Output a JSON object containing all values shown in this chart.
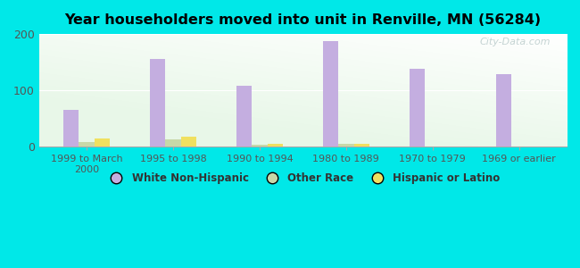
{
  "title": "Year householders moved into unit in Renville, MN (56284)",
  "categories": [
    "1999 to March\n2000",
    "1995 to 1998",
    "1990 to 1994",
    "1980 to 1989",
    "1970 to 1979",
    "1969 or earlier"
  ],
  "white_non_hispanic": [
    65,
    155,
    108,
    188,
    138,
    128
  ],
  "other_race": [
    8,
    12,
    3,
    4,
    0,
    0
  ],
  "hispanic_or_latino": [
    14,
    17,
    5,
    5,
    0,
    0
  ],
  "bar_width": 0.18,
  "ylim": [
    0,
    200
  ],
  "yticks": [
    0,
    100,
    200
  ],
  "colors": {
    "white_non_hispanic": "#c4aee0",
    "other_race": "#c8d8a8",
    "hispanic_or_latino": "#f0e060"
  },
  "background_color": "#00e8e8",
  "watermark": "City-Data.com",
  "legend_labels": [
    "White Non-Hispanic",
    "Other Race",
    "Hispanic or Latino"
  ]
}
